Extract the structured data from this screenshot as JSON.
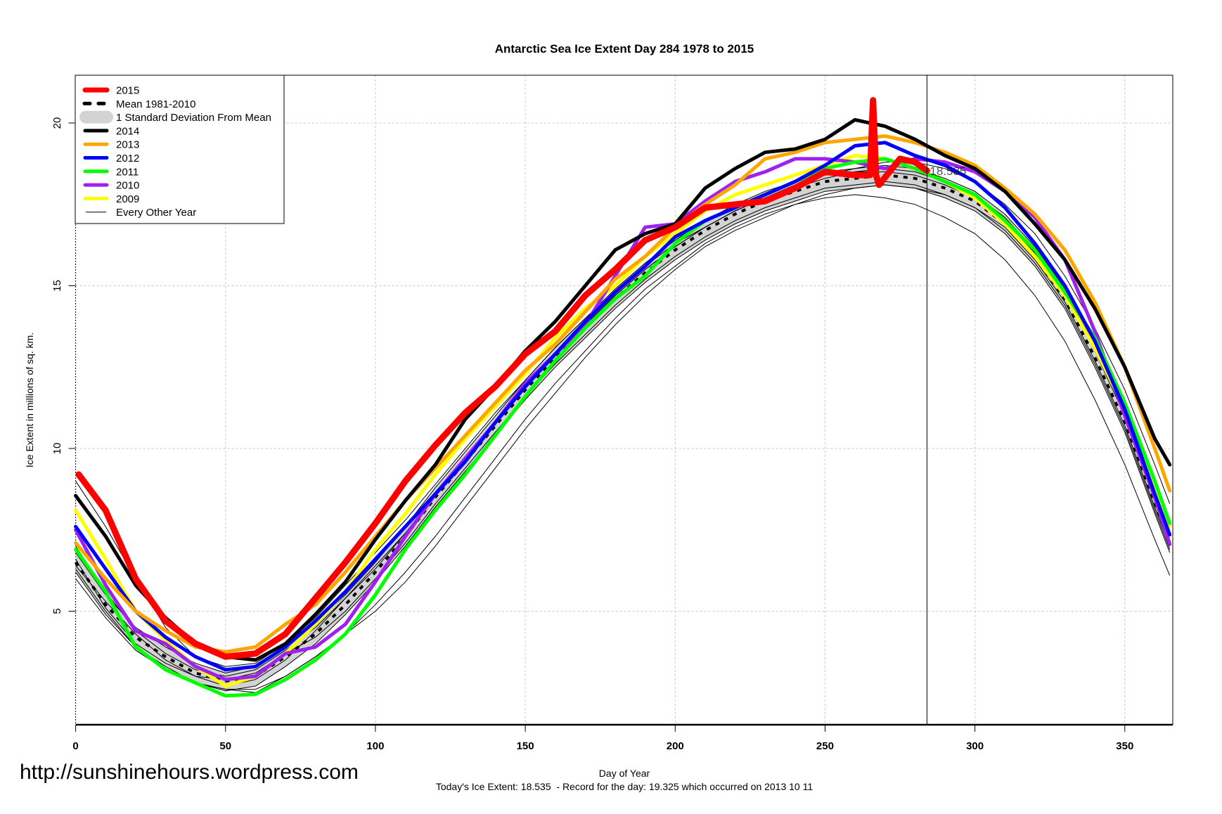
{
  "chart_data": {
    "type": "line",
    "title": "Antarctic Sea Ice Extent Day 284 1978 to 2015",
    "xlabel": "Day of Year",
    "ylabel": "Ice Extent in millions of sq. km.",
    "subtitle": "Today's Ice Extent: 18.535  - Record for the day: 19.325 which occurred on 2013 10 11",
    "watermark": "http://sunshinehours.wordpress.com",
    "xlim": [
      0,
      366
    ],
    "ylim": [
      1.5,
      21.47
    ],
    "x_ticks": [
      0,
      50,
      100,
      150,
      200,
      250,
      300,
      350
    ],
    "y_ticks": [
      5,
      10,
      15,
      20
    ],
    "grid": true,
    "legend_placement": "top-left",
    "current_day": 284,
    "current_value_label": "18.535",
    "days": [
      0,
      10,
      20,
      30,
      40,
      50,
      60,
      70,
      80,
      90,
      100,
      110,
      120,
      130,
      140,
      150,
      160,
      170,
      180,
      190,
      200,
      210,
      220,
      230,
      240,
      250,
      260,
      270,
      280,
      290,
      300,
      310,
      320,
      330,
      340,
      350,
      360,
      365
    ],
    "mean": {
      "name": "Mean 1981-2010",
      "values": [
        6.5,
        5.2,
        4.2,
        3.6,
        3.1,
        2.85,
        3.0,
        3.6,
        4.3,
        5.2,
        6.2,
        7.3,
        8.5,
        9.6,
        10.7,
        11.8,
        12.8,
        13.7,
        14.6,
        15.4,
        16.1,
        16.7,
        17.2,
        17.6,
        17.9,
        18.2,
        18.3,
        18.4,
        18.3,
        18.0,
        17.6,
        16.9,
        15.9,
        14.6,
        12.8,
        10.8,
        8.3,
        7.1
      ],
      "sd": 0.3,
      "sd_name": "1 Standard Deviation From Mean",
      "sd_color": "#d3d3d3"
    },
    "other_years": {
      "name": "Every Other Year",
      "color": "#000000",
      "series": [
        [
          6.8,
          5.5,
          4.5,
          3.9,
          3.4,
          3.1,
          3.3,
          3.9,
          4.6,
          5.5,
          6.5,
          7.6,
          8.8,
          9.9,
          11.0,
          12.1,
          13.1,
          14.0,
          14.9,
          15.7,
          16.4,
          17.0,
          17.5,
          17.9,
          18.2,
          18.5,
          18.6,
          18.7,
          18.6,
          18.3,
          17.9,
          17.2,
          16.2,
          14.9,
          13.1,
          11.1,
          8.6,
          7.4
        ],
        [
          6.2,
          4.9,
          3.9,
          3.3,
          2.8,
          2.55,
          2.7,
          3.3,
          4.0,
          4.9,
          5.9,
          7.0,
          8.2,
          9.3,
          10.4,
          11.5,
          12.5,
          13.4,
          14.3,
          15.1,
          15.8,
          16.4,
          16.9,
          17.3,
          17.6,
          17.9,
          18.0,
          18.1,
          18.0,
          17.7,
          17.3,
          16.6,
          15.6,
          14.3,
          12.5,
          10.5,
          8.0,
          6.8
        ],
        [
          6.0,
          4.8,
          3.8,
          3.2,
          2.8,
          2.6,
          2.6,
          3.0,
          3.6,
          4.3,
          5.2,
          6.2,
          7.3,
          8.5,
          9.7,
          10.9,
          12.0,
          13.0,
          14.0,
          14.9,
          15.6,
          16.3,
          16.8,
          17.2,
          17.5,
          17.7,
          17.8,
          17.7,
          17.5,
          17.1,
          16.6,
          15.8,
          14.7,
          13.3,
          11.5,
          9.5,
          7.2,
          6.1
        ],
        [
          9.0,
          7.6,
          6.0,
          4.5,
          3.6,
          3.3,
          3.4,
          4.0,
          4.8,
          5.8,
          6.8,
          7.8,
          8.9,
          10.0,
          11.1,
          12.1,
          13.1,
          14.0,
          14.8,
          15.6,
          16.3,
          16.8,
          17.3,
          17.7,
          18.0,
          18.3,
          18.5,
          18.5,
          18.4,
          18.1,
          17.7,
          17.0,
          16.0,
          14.8,
          13.2,
          11.3,
          9.0,
          7.8
        ],
        [
          6.6,
          5.1,
          4.0,
          3.4,
          3.0,
          2.7,
          2.9,
          3.5,
          4.4,
          5.4,
          6.4,
          7.4,
          8.6,
          9.7,
          10.8,
          11.9,
          12.9,
          13.8,
          14.7,
          15.5,
          16.2,
          16.8,
          17.3,
          17.7,
          18.0,
          18.4,
          18.5,
          18.6,
          18.5,
          18.2,
          17.8,
          17.1,
          16.1,
          14.8,
          13.0,
          11.0,
          8.5,
          7.2
        ],
        [
          6.4,
          5.3,
          4.3,
          3.5,
          3.0,
          2.9,
          3.1,
          3.7,
          4.2,
          5.0,
          6.0,
          7.1,
          8.3,
          9.4,
          10.5,
          11.6,
          12.6,
          13.5,
          14.4,
          15.2,
          15.9,
          16.5,
          17.0,
          17.4,
          17.7,
          18.0,
          18.1,
          18.2,
          18.1,
          17.8,
          17.4,
          16.7,
          15.7,
          14.4,
          12.6,
          10.6,
          8.1,
          6.9
        ],
        [
          7.0,
          5.6,
          4.4,
          3.7,
          3.2,
          3.0,
          3.2,
          3.8,
          4.5,
          5.4,
          6.3,
          7.4,
          8.6,
          9.7,
          10.8,
          11.9,
          12.9,
          13.8,
          14.7,
          15.5,
          16.2,
          16.8,
          17.3,
          17.7,
          18.1,
          18.4,
          18.6,
          18.8,
          18.8,
          18.6,
          18.2,
          17.5,
          16.6,
          15.3,
          13.7,
          11.8,
          9.5,
          8.3
        ],
        [
          6.3,
          5.0,
          3.9,
          3.2,
          2.8,
          2.6,
          2.5,
          3.0,
          3.6,
          4.3,
          5.0,
          5.9,
          7.0,
          8.2,
          9.4,
          10.6,
          11.7,
          12.8,
          13.8,
          14.7,
          15.5,
          16.2,
          16.7,
          17.1,
          17.5,
          17.8,
          18.0,
          18.1,
          18.0,
          17.8,
          17.4,
          16.8,
          15.8,
          14.5,
          12.7,
          10.7,
          8.2,
          7.0
        ]
      ]
    },
    "series": [
      {
        "name": "2009",
        "color": "#ffff00",
        "values": [
          8.1,
          6.6,
          5.0,
          4.1,
          3.3,
          2.7,
          3.0,
          3.7,
          4.6,
          5.6,
          6.9,
          8.0,
          9.2,
          10.3,
          11.3,
          12.3,
          13.4,
          14.3,
          15.0,
          15.9,
          16.6,
          17.3,
          17.8,
          18.1,
          18.4,
          18.7,
          19.0,
          18.9,
          18.6,
          18.2,
          17.7,
          16.9,
          15.9,
          14.7,
          13.1,
          11.2,
          8.8,
          7.6
        ]
      },
      {
        "name": "2010",
        "color": "#a020f0",
        "values": [
          7.5,
          5.8,
          4.4,
          4.0,
          3.3,
          2.9,
          3.0,
          3.7,
          3.9,
          4.6,
          5.9,
          7.3,
          8.6,
          9.7,
          10.8,
          12.0,
          12.9,
          13.8,
          15.3,
          16.8,
          16.9,
          17.6,
          18.2,
          18.5,
          18.9,
          18.9,
          18.8,
          18.6,
          18.9,
          18.8,
          18.5,
          17.9,
          17.1,
          15.8,
          13.6,
          11.0,
          8.5,
          7.06
        ]
      },
      {
        "name": "2011",
        "color": "#00ff00",
        "values": [
          6.9,
          5.6,
          3.9,
          3.2,
          2.8,
          2.4,
          2.45,
          2.9,
          3.5,
          4.3,
          5.5,
          6.9,
          8.1,
          9.2,
          10.4,
          11.6,
          12.7,
          13.7,
          14.6,
          15.3,
          16.3,
          17.0,
          17.4,
          17.8,
          18.2,
          18.6,
          18.8,
          18.9,
          18.6,
          18.2,
          17.8,
          17.0,
          16.1,
          14.8,
          13.4,
          11.4,
          9.0,
          7.7
        ]
      },
      {
        "name": "2012",
        "color": "#0000ff",
        "values": [
          7.6,
          6.3,
          5.0,
          4.2,
          3.6,
          3.2,
          3.3,
          3.9,
          4.7,
          5.6,
          6.6,
          7.6,
          8.6,
          9.6,
          10.8,
          11.9,
          12.9,
          13.9,
          14.8,
          15.6,
          16.5,
          17.0,
          17.4,
          17.8,
          18.2,
          18.7,
          19.3,
          19.4,
          19.0,
          18.7,
          18.2,
          17.4,
          16.3,
          15.0,
          13.3,
          11.2,
          8.6,
          7.35
        ]
      },
      {
        "name": "2013",
        "color": "#ffa500",
        "values": [
          7.1,
          6.0,
          5.0,
          4.4,
          3.9,
          3.75,
          3.9,
          4.6,
          5.2,
          6.2,
          7.3,
          8.4,
          9.4,
          10.4,
          11.4,
          12.4,
          13.2,
          14.2,
          15.2,
          15.9,
          16.8,
          17.5,
          18.1,
          18.9,
          19.1,
          19.4,
          19.5,
          19.6,
          19.4,
          19.1,
          18.7,
          18.0,
          17.2,
          16.1,
          14.5,
          12.5,
          10.0,
          8.7
        ]
      },
      {
        "name": "2014",
        "color": "#000000",
        "values": [
          8.55,
          7.3,
          5.8,
          4.8,
          4.0,
          3.6,
          3.5,
          4.0,
          4.9,
          5.9,
          7.2,
          8.4,
          9.5,
          10.9,
          11.9,
          13.0,
          13.9,
          15.0,
          16.1,
          16.6,
          16.9,
          18.0,
          18.6,
          19.1,
          19.2,
          19.5,
          20.1,
          19.9,
          19.5,
          19.0,
          18.6,
          17.9,
          16.9,
          15.8,
          14.3,
          12.5,
          10.3,
          9.5
        ]
      }
    ],
    "current_year": {
      "name": "2015",
      "color": "#ff0000",
      "days": [
        1,
        10,
        20,
        30,
        40,
        50,
        60,
        70,
        80,
        90,
        100,
        110,
        120,
        130,
        140,
        150,
        160,
        170,
        180,
        190,
        200,
        210,
        220,
        230,
        240,
        250,
        260,
        265,
        266,
        267,
        268,
        275,
        280,
        284
      ],
      "values": [
        9.2,
        8.1,
        6.0,
        4.7,
        4.0,
        3.6,
        3.7,
        4.3,
        5.4,
        6.5,
        7.7,
        9.0,
        10.1,
        11.1,
        11.9,
        12.9,
        13.6,
        14.7,
        15.5,
        16.4,
        16.8,
        17.4,
        17.5,
        17.6,
        18.0,
        18.5,
        18.4,
        18.4,
        20.7,
        18.4,
        18.1,
        18.9,
        18.8,
        18.535
      ]
    },
    "legend": [
      {
        "label": "2015",
        "color": "#ff0000",
        "style": "thick"
      },
      {
        "label": "Mean 1981-2010",
        "color": "#000000",
        "style": "dashed"
      },
      {
        "label": "1 Standard Deviation From Mean",
        "color": "#d3d3d3",
        "style": "band"
      },
      {
        "label": "2014",
        "color": "#000000",
        "style": "line"
      },
      {
        "label": "2013",
        "color": "#ffa500",
        "style": "line"
      },
      {
        "label": "2012",
        "color": "#0000ff",
        "style": "line"
      },
      {
        "label": "2011",
        "color": "#00ff00",
        "style": "line"
      },
      {
        "label": "2010",
        "color": "#a020f0",
        "style": "line"
      },
      {
        "label": "2009",
        "color": "#ffff00",
        "style": "line"
      },
      {
        "label": "Every Other Year",
        "color": "#000000",
        "style": "thin"
      }
    ]
  }
}
